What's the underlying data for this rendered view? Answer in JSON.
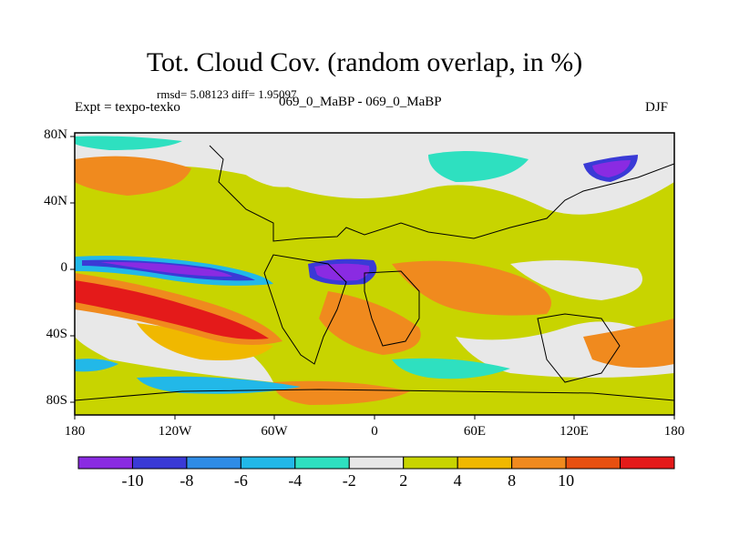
{
  "header": {
    "title": "Tot. Cloud Cov. (random overlap, in %)",
    "stats": "rmsd= 5.08123 diff= 1.95097",
    "experiment": "Expt = texpo-texko",
    "comparison": "069_0_MaBP - 069_0_MaBP",
    "season": "DJF"
  },
  "axes": {
    "lat_labels": [
      "80N",
      "40N",
      "0",
      "40S",
      "80S"
    ],
    "lon_labels": [
      "180",
      "120W",
      "60W",
      "0",
      "60E",
      "120E",
      "180"
    ]
  },
  "colorbar": {
    "labels": [
      "-10",
      "-8",
      "-6",
      "-4",
      "-2",
      "2",
      "4",
      "8",
      "10"
    ],
    "colors": [
      "#8a2be2",
      "#3a3ad6",
      "#2f8ce6",
      "#22b8e8",
      "#2ee0c0",
      "#e8e8e8",
      "#c8d400",
      "#f0b800",
      "#f08a1e",
      "#e85010",
      "#e41a1a"
    ]
  }
}
